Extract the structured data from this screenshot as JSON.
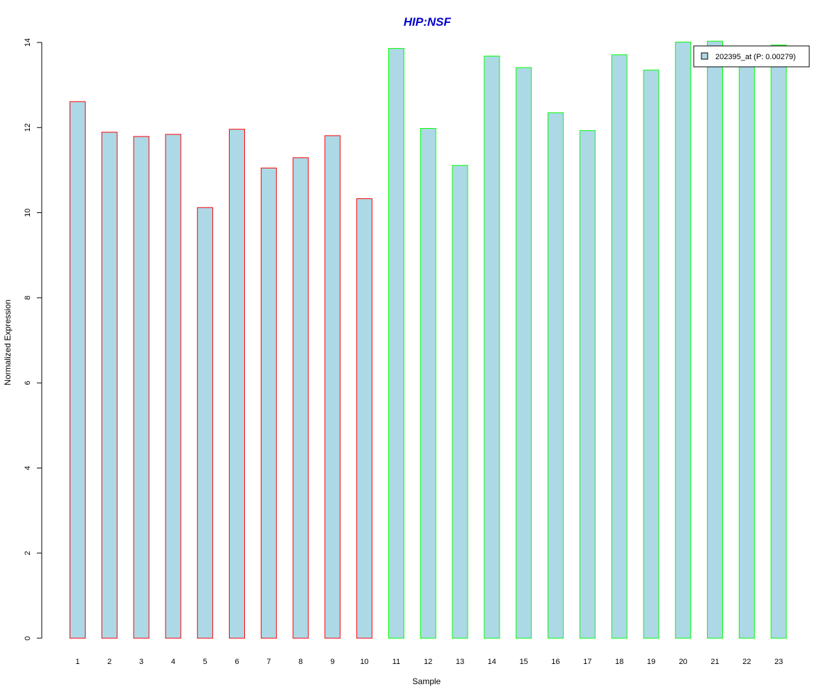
{
  "chart_data": {
    "type": "bar",
    "title": "HIP:NSF",
    "title_color": "#0000CC",
    "xlabel": "Sample",
    "ylabel": "Normalized Expression",
    "ylim": [
      0,
      14
    ],
    "yticks": [
      0,
      2,
      4,
      6,
      8,
      10,
      12,
      14
    ],
    "categories": [
      "1",
      "2",
      "3",
      "4",
      "5",
      "6",
      "7",
      "8",
      "9",
      "10",
      "11",
      "12",
      "13",
      "14",
      "15",
      "16",
      "17",
      "18",
      "19",
      "20",
      "21",
      "22",
      "23"
    ],
    "series": [
      {
        "name": "202395_at (P: 0.00279)",
        "fill": "#ADD8E6",
        "values": [
          12.61,
          11.89,
          11.79,
          11.84,
          10.12,
          11.96,
          11.05,
          11.29,
          11.81,
          10.33,
          13.86,
          11.98,
          11.11,
          13.68,
          13.41,
          12.35,
          11.93,
          13.71,
          13.35,
          14.01,
          14.03,
          13.78,
          13.94
        ]
      }
    ],
    "border_colors": [
      "#FF0000",
      "#FF0000",
      "#FF0000",
      "#FF0000",
      "#FF0000",
      "#FF0000",
      "#FF0000",
      "#FF0000",
      "#FF0000",
      "#FF0000",
      "#00FF00",
      "#00FF00",
      "#00FF00",
      "#00FF00",
      "#00FF00",
      "#00FF00",
      "#00FF00",
      "#00FF00",
      "#00FF00",
      "#00FF00",
      "#00FF00",
      "#00FF00",
      "#00FF00"
    ],
    "legend_position": "top-right",
    "grid": false
  }
}
